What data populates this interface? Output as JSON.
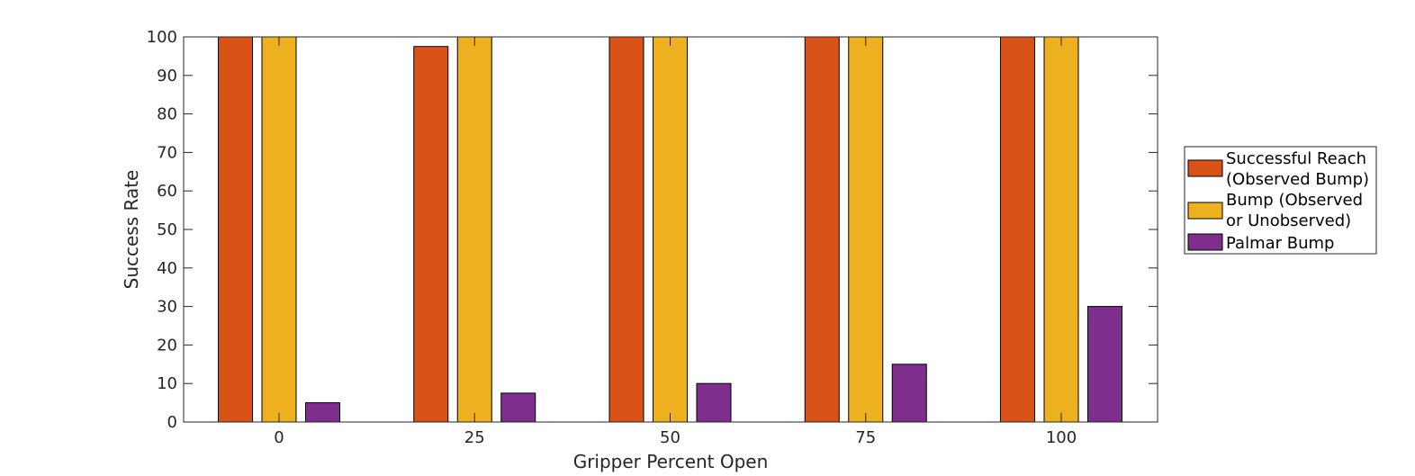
{
  "chart_data": {
    "type": "bar",
    "categories": [
      "0",
      "25",
      "50",
      "75",
      "100"
    ],
    "series": [
      {
        "name_lines": [
          "Successful Reach",
          "(Observed Bump)"
        ],
        "values": [
          100,
          97.5,
          100,
          100,
          100
        ],
        "color": "#D95319"
      },
      {
        "name_lines": [
          "Bump (Observed",
          "or Unobserved)"
        ],
        "values": [
          100,
          100,
          100,
          100,
          100
        ],
        "color": "#EDB120"
      },
      {
        "name_lines": [
          "Palmar Bump"
        ],
        "values": [
          5,
          7.5,
          10,
          15,
          30
        ],
        "color": "#7E2F8E"
      }
    ],
    "xlabel": "Gripper Percent Open",
    "ylabel": "Success Rate",
    "ylim": [
      0,
      100
    ],
    "yticks": [
      "0",
      "10",
      "20",
      "30",
      "40",
      "50",
      "60",
      "70",
      "80",
      "90",
      "100"
    ],
    "grid": false,
    "legend_position": "outside-right"
  }
}
